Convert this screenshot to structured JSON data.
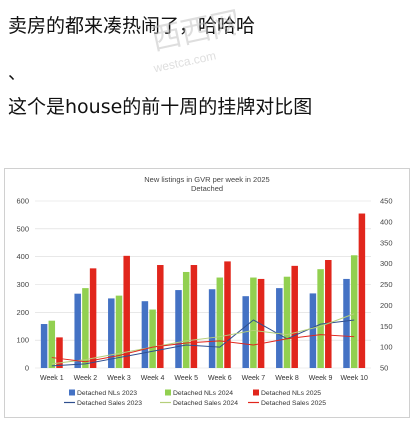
{
  "post": {
    "line1": "卖房的都来凑热闹了，哈哈哈",
    "line2": "、",
    "line3": "这个是house的前十周的挂牌对比图"
  },
  "watermark": {
    "text1": "西西网",
    "text2": "westca.com"
  },
  "chart_data": {
    "type": "bar+line",
    "title": "New listings in GVR per week in 2025",
    "subtitle": "Detached",
    "categories": [
      "Week 1",
      "Week 2",
      "Week 3",
      "Week 4",
      "Week 5",
      "Week 6",
      "Week 7",
      "Week 8",
      "Week 9",
      "Week 10"
    ],
    "left_axis": {
      "ylim": [
        0,
        600
      ],
      "ticks": [
        0,
        100,
        200,
        300,
        400,
        500,
        600
      ]
    },
    "right_axis": {
      "ylim": [
        50,
        450
      ],
      "ticks": [
        50,
        100,
        150,
        200,
        250,
        300,
        350,
        400,
        450
      ]
    },
    "bar_series": [
      {
        "name": "Detached NLs 2023",
        "color": "#4472c4",
        "values": [
          158,
          267,
          250,
          240,
          280,
          283,
          258,
          287,
          268,
          320
        ]
      },
      {
        "name": "Detached NLs 2024",
        "color": "#92d050",
        "values": [
          170,
          287,
          260,
          210,
          345,
          325,
          325,
          328,
          355,
          405
        ]
      },
      {
        "name": "Detached NLs 2025",
        "color": "#e1261c",
        "values": [
          110,
          358,
          403,
          370,
          370,
          383,
          320,
          367,
          388,
          555
        ]
      }
    ],
    "line_series": [
      {
        "name": "Detached Sales 2023",
        "color": "#2f4f8f",
        "values": [
          55,
          60,
          75,
          90,
          105,
          100,
          165,
          120,
          155,
          165
        ]
      },
      {
        "name": "Detached Sales 2024",
        "color": "#b5cf7a",
        "values": [
          60,
          70,
          85,
          100,
          115,
          125,
          140,
          130,
          150,
          180
        ]
      },
      {
        "name": "Detached Sales 2025",
        "color": "#e1261c",
        "values": [
          75,
          65,
          80,
          100,
          110,
          115,
          105,
          120,
          130,
          125
        ]
      }
    ],
    "legend_position": "bottom",
    "grid": true
  }
}
